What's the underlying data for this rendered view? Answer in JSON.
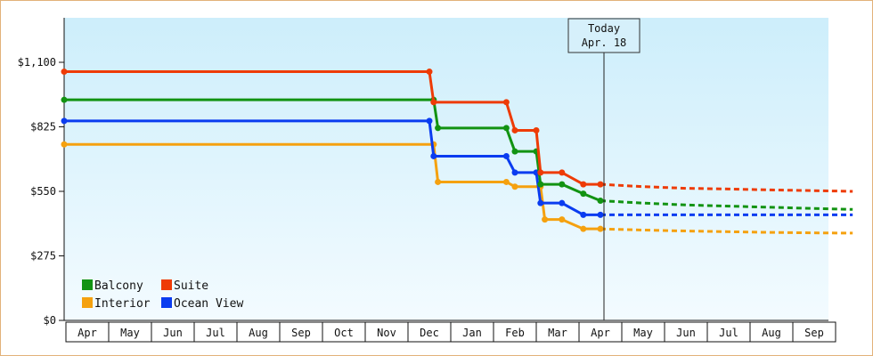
{
  "chart_data": {
    "type": "line",
    "title": "",
    "xlabel": "",
    "ylabel": "",
    "x_ticks": [
      "Apr",
      "May",
      "Jun",
      "Jul",
      "Aug",
      "Sep",
      "Oct",
      "Nov",
      "Dec",
      "Jan",
      "Feb",
      "Mar",
      "Apr",
      "May",
      "Jun",
      "Jul",
      "Aug",
      "Sep"
    ],
    "y_ticks": [
      "$0",
      "$275",
      "$550",
      "$825",
      "$1,100"
    ],
    "ylim": [
      0,
      1100
    ],
    "grid": false,
    "legend_position": "bottom-left",
    "today_marker": {
      "line1": "Today",
      "line2": "Apr. 18",
      "x_month": 12.0
    },
    "series": [
      {
        "name": "Balcony",
        "color": "#129312",
        "x": [
          0,
          8.1,
          8.2,
          9.8,
          10.0,
          10.5,
          10.6,
          11.1,
          11.6,
          12.0
        ],
        "y": [
          940,
          940,
          820,
          820,
          720,
          720,
          580,
          580,
          540,
          510
        ],
        "projection_x": [
          12.0,
          13,
          14,
          15,
          16,
          17,
          17.9
        ],
        "projection_y": [
          510,
          500,
          492,
          487,
          482,
          477,
          473
        ]
      },
      {
        "name": "Suite",
        "color": "#ee3b06",
        "x": [
          0,
          8.0,
          8.1,
          9.8,
          10.0,
          10.5,
          10.6,
          11.1,
          11.6,
          12.0
        ],
        "y": [
          1060,
          1060,
          930,
          930,
          810,
          810,
          630,
          630,
          580,
          580
        ],
        "projection_x": [
          12.0,
          13,
          14,
          15,
          16,
          17,
          17.9
        ],
        "projection_y": [
          580,
          570,
          563,
          560,
          556,
          553,
          550
        ]
      },
      {
        "name": "Interior",
        "color": "#f5a10f",
        "x": [
          0,
          8.1,
          8.2,
          9.8,
          10.0,
          10.6,
          10.7,
          11.1,
          11.6,
          12.0
        ],
        "y": [
          750,
          750,
          590,
          590,
          570,
          570,
          430,
          430,
          390,
          390
        ],
        "projection_x": [
          12.0,
          13,
          14,
          15,
          16,
          17,
          17.9
        ],
        "projection_y": [
          390,
          385,
          381,
          378,
          375,
          373,
          372
        ]
      },
      {
        "name": "Ocean View",
        "color": "#0a3cf0",
        "x": [
          0,
          8.0,
          8.1,
          9.8,
          10.0,
          10.5,
          10.6,
          11.1,
          11.6,
          12.0
        ],
        "y": [
          850,
          850,
          700,
          700,
          630,
          630,
          500,
          500,
          450,
          450
        ],
        "projection_x": [
          12.0,
          17.9
        ],
        "projection_y": [
          450,
          450
        ]
      }
    ]
  }
}
